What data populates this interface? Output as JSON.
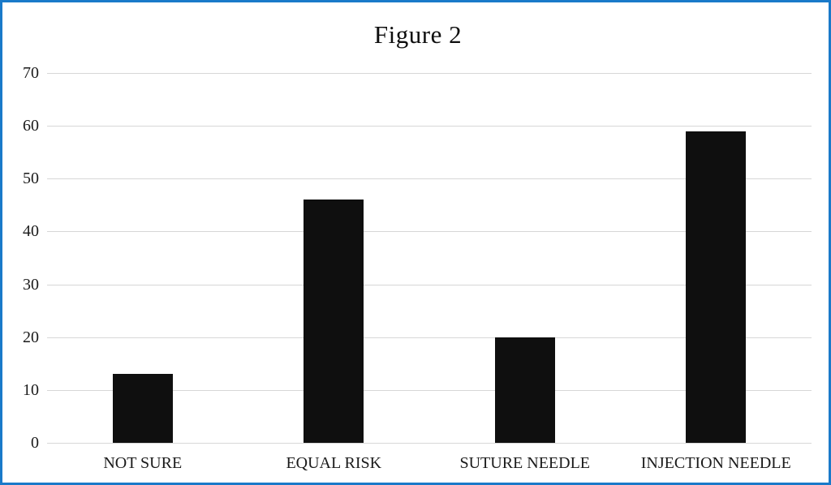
{
  "window": {
    "frame_border_color": "#1a7ac9",
    "background_color": "#ffffff"
  },
  "chart_data": {
    "type": "bar",
    "title": "Figure 2",
    "categories": [
      "NOT SURE",
      "EQUAL RISK",
      "SUTURE NEEDLE",
      "INJECTION NEEDLE"
    ],
    "values": [
      13,
      46,
      20,
      59
    ],
    "xlabel": "",
    "ylabel": "",
    "ylim": [
      0,
      70
    ],
    "yticks": [
      0,
      10,
      20,
      30,
      40,
      50,
      60,
      70
    ],
    "grid": "horizontal",
    "legend_position": "none",
    "bar_color": "#0f0f0f",
    "gridline_color": "#d7d7d7",
    "text_color": "#1a1a1a"
  }
}
